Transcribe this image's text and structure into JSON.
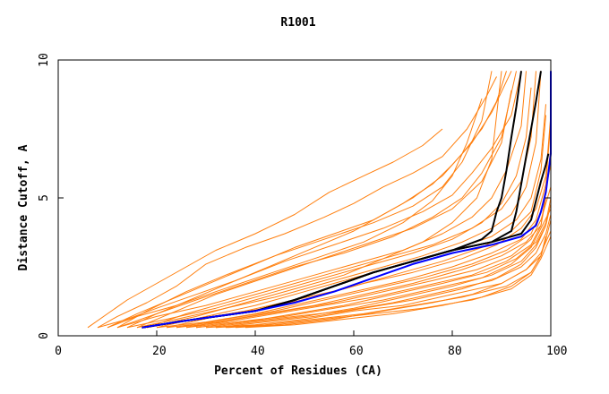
{
  "chart_data": {
    "type": "line",
    "title": "R1001",
    "xlabel": "Percent of Residues (CA)",
    "ylabel": "Distance Cutoff, A",
    "xlim": [
      0,
      100
    ],
    "ylim": [
      0,
      10
    ],
    "xticks": [
      "0",
      "20",
      "40",
      "60",
      "80",
      "100"
    ],
    "yticks": [
      "0",
      "5",
      "10"
    ],
    "grid": false,
    "legend": "none",
    "colors": {
      "orange": "#ff7f0e",
      "black": "#000000",
      "blue": "#0000ff"
    },
    "series": [
      {
        "color": "orange",
        "x": [
          6,
          10,
          14,
          20,
          26,
          32,
          40,
          48,
          55,
          62,
          68,
          74,
          78
        ],
        "y": [
          0.3,
          0.8,
          1.3,
          1.9,
          2.5,
          3.1,
          3.7,
          4.4,
          5.2,
          5.8,
          6.3,
          6.9,
          7.5
        ]
      },
      {
        "color": "orange",
        "x": [
          8,
          12,
          18,
          24,
          30,
          38,
          46,
          54,
          60,
          66,
          72,
          78,
          83,
          87,
          89
        ],
        "y": [
          0.3,
          0.7,
          1.2,
          1.8,
          2.6,
          3.2,
          3.7,
          4.3,
          4.8,
          5.4,
          5.9,
          6.5,
          7.5,
          8.7,
          9.4
        ]
      },
      {
        "color": "orange",
        "x": [
          10,
          16,
          24,
          32,
          40,
          48,
          56,
          64,
          70,
          76,
          80,
          84,
          88,
          92
        ],
        "y": [
          0.3,
          0.8,
          1.4,
          2.0,
          2.6,
          3.2,
          3.7,
          4.2,
          4.8,
          5.5,
          6.2,
          7.0,
          8.1,
          9.6
        ]
      },
      {
        "color": "orange",
        "x": [
          12,
          20,
          28,
          36,
          46,
          56,
          66,
          74,
          80,
          84,
          88,
          92,
          94
        ],
        "y": [
          0.3,
          0.8,
          1.4,
          2.0,
          2.7,
          3.3,
          3.9,
          4.5,
          5.1,
          5.9,
          6.8,
          8.0,
          9.6
        ]
      },
      {
        "color": "orange",
        "x": [
          8,
          14,
          20,
          28,
          36,
          44,
          52,
          60,
          66,
          72,
          78,
          82,
          86,
          89,
          91
        ],
        "y": [
          0.3,
          0.6,
          1.0,
          1.5,
          2.0,
          2.6,
          3.2,
          3.8,
          4.4,
          5.0,
          5.8,
          6.6,
          7.5,
          8.5,
          9.6
        ]
      },
      {
        "color": "orange",
        "x": [
          10,
          16,
          24,
          32,
          42,
          52,
          62,
          70,
          76,
          80,
          83,
          86
        ],
        "y": [
          0.3,
          0.7,
          1.1,
          1.6,
          2.2,
          2.8,
          3.4,
          4.1,
          4.9,
          5.8,
          7.0,
          8.6
        ]
      },
      {
        "color": "orange",
        "x": [
          12,
          20,
          30,
          40,
          50,
          60,
          70,
          78,
          84,
          88,
          91,
          94,
          95
        ],
        "y": [
          0.3,
          0.7,
          1.1,
          1.6,
          2.1,
          2.6,
          3.1,
          3.7,
          4.3,
          5.0,
          6.0,
          7.6,
          9.6
        ]
      },
      {
        "color": "orange",
        "x": [
          14,
          22,
          32,
          42,
          52,
          62,
          72,
          80,
          86,
          90,
          93,
          95,
          96
        ],
        "y": [
          0.3,
          0.6,
          1.0,
          1.5,
          2.0,
          2.5,
          3.0,
          3.5,
          4.1,
          4.8,
          5.8,
          7.2,
          9.0
        ]
      },
      {
        "color": "orange",
        "x": [
          16,
          24,
          34,
          44,
          54,
          64,
          74,
          82,
          88,
          92,
          95,
          97,
          98
        ],
        "y": [
          0.3,
          0.6,
          1.0,
          1.4,
          1.9,
          2.4,
          2.9,
          3.4,
          3.9,
          4.4,
          5.4,
          7.0,
          9.6
        ]
      },
      {
        "color": "orange",
        "x": [
          18,
          28,
          38,
          48,
          58,
          68,
          78,
          86,
          92,
          96,
          98,
          99
        ],
        "y": [
          0.3,
          0.6,
          0.9,
          1.3,
          1.7,
          2.2,
          2.7,
          3.2,
          3.8,
          4.5,
          6.0,
          8.0
        ]
      },
      {
        "color": "orange",
        "x": [
          20,
          30,
          40,
          50,
          60,
          70,
          80,
          88,
          94,
          97,
          99,
          100
        ],
        "y": [
          0.3,
          0.5,
          0.8,
          1.2,
          1.6,
          2.0,
          2.5,
          3.0,
          3.5,
          4.2,
          5.5,
          7.8
        ]
      },
      {
        "color": "orange",
        "x": [
          22,
          32,
          42,
          52,
          62,
          72,
          82,
          90,
          95,
          98,
          99,
          100
        ],
        "y": [
          0.3,
          0.5,
          0.8,
          1.1,
          1.5,
          1.9,
          2.4,
          2.9,
          3.4,
          4.0,
          5.2,
          6.8
        ]
      },
      {
        "color": "orange",
        "x": [
          24,
          34,
          44,
          54,
          64,
          74,
          84,
          91,
          96,
          98,
          99
        ],
        "y": [
          0.3,
          0.5,
          0.8,
          1.1,
          1.4,
          1.8,
          2.2,
          2.7,
          3.3,
          4.0,
          5.0
        ]
      },
      {
        "color": "orange",
        "x": [
          26,
          36,
          46,
          56,
          66,
          76,
          86,
          92,
          96,
          98,
          100
        ],
        "y": [
          0.3,
          0.5,
          0.7,
          1.0,
          1.3,
          1.7,
          2.1,
          2.6,
          3.2,
          3.9,
          4.6
        ]
      },
      {
        "color": "orange",
        "x": [
          28,
          38,
          48,
          58,
          68,
          78,
          88,
          94,
          97,
          99,
          100
        ],
        "y": [
          0.3,
          0.5,
          0.7,
          0.9,
          1.2,
          1.6,
          2.0,
          2.5,
          3.0,
          3.7,
          4.4
        ]
      },
      {
        "color": "orange",
        "x": [
          30,
          40,
          50,
          60,
          70,
          80,
          90,
          95,
          98,
          99,
          100
        ],
        "y": [
          0.3,
          0.4,
          0.6,
          0.9,
          1.1,
          1.5,
          1.9,
          2.4,
          2.9,
          3.5,
          4.2
        ]
      },
      {
        "color": "orange",
        "x": [
          32,
          42,
          52,
          62,
          72,
          82,
          91,
          96,
          98,
          99
        ],
        "y": [
          0.3,
          0.4,
          0.6,
          0.8,
          1.1,
          1.4,
          1.8,
          2.3,
          2.9,
          3.6
        ]
      },
      {
        "color": "orange",
        "x": [
          34,
          44,
          54,
          64,
          74,
          84,
          92,
          96,
          98,
          100
        ],
        "y": [
          0.3,
          0.4,
          0.6,
          0.8,
          1.0,
          1.3,
          1.7,
          2.2,
          2.8,
          3.6
        ]
      },
      {
        "color": "orange",
        "x": [
          14,
          20,
          28,
          38,
          48,
          58,
          68,
          76,
          82,
          86,
          90,
          93
        ],
        "y": [
          0.3,
          0.8,
          1.3,
          1.9,
          2.5,
          3.0,
          3.6,
          4.3,
          5.0,
          5.9,
          7.2,
          9.6
        ]
      },
      {
        "color": "orange",
        "x": [
          16,
          24,
          32,
          42,
          52,
          62,
          72,
          80,
          86,
          90,
          92
        ],
        "y": [
          0.3,
          0.9,
          1.5,
          2.1,
          2.7,
          3.3,
          3.9,
          4.6,
          5.6,
          7.0,
          8.9
        ]
      },
      {
        "color": "orange",
        "x": [
          18,
          26,
          36,
          46,
          56,
          66,
          76,
          84,
          90,
          94,
          96,
          97
        ],
        "y": [
          0.3,
          0.8,
          1.3,
          1.8,
          2.3,
          2.8,
          3.3,
          3.9,
          4.6,
          5.6,
          7.2,
          9.6
        ]
      },
      {
        "color": "orange",
        "x": [
          20,
          30,
          40,
          50,
          60,
          70,
          80,
          88,
          93,
          96,
          98,
          99
        ],
        "y": [
          0.3,
          0.7,
          1.1,
          1.6,
          2.1,
          2.6,
          3.1,
          3.6,
          4.2,
          5.0,
          6.4,
          8.4
        ]
      },
      {
        "color": "orange",
        "x": [
          22,
          32,
          42,
          52,
          62,
          72,
          82,
          89,
          94,
          97,
          99,
          100
        ],
        "y": [
          0.3,
          0.7,
          1.0,
          1.4,
          1.9,
          2.3,
          2.8,
          3.3,
          3.9,
          4.6,
          5.8,
          8.0
        ]
      },
      {
        "color": "orange",
        "x": [
          24,
          34,
          44,
          54,
          64,
          74,
          84,
          91,
          96,
          98,
          100
        ],
        "y": [
          0.3,
          0.6,
          0.9,
          1.3,
          1.7,
          2.1,
          2.6,
          3.1,
          3.7,
          4.5,
          6.2
        ]
      },
      {
        "color": "orange",
        "x": [
          26,
          36,
          46,
          56,
          66,
          76,
          85,
          92,
          96,
          98,
          100
        ],
        "y": [
          0.3,
          0.6,
          0.9,
          1.2,
          1.6,
          2.0,
          2.4,
          2.9,
          3.5,
          4.2,
          5.4
        ]
      },
      {
        "color": "orange",
        "x": [
          28,
          38,
          48,
          58,
          68,
          78,
          87,
          93,
          97,
          99,
          100
        ],
        "y": [
          0.3,
          0.5,
          0.8,
          1.1,
          1.5,
          1.9,
          2.3,
          2.8,
          3.4,
          4.1,
          5.0
        ]
      },
      {
        "color": "orange",
        "x": [
          30,
          40,
          50,
          60,
          70,
          80,
          88,
          94,
          97,
          99,
          100
        ],
        "y": [
          0.3,
          0.5,
          0.7,
          1.0,
          1.4,
          1.8,
          2.2,
          2.7,
          3.3,
          4.0,
          4.8
        ]
      },
      {
        "color": "orange",
        "x": [
          32,
          42,
          52,
          62,
          72,
          82,
          89,
          94,
          97,
          99
        ],
        "y": [
          0.3,
          0.5,
          0.7,
          1.0,
          1.3,
          1.7,
          2.1,
          2.6,
          3.2,
          4.0
        ]
      },
      {
        "color": "orange",
        "x": [
          36,
          46,
          56,
          66,
          76,
          84,
          90,
          95,
          98,
          100
        ],
        "y": [
          0.3,
          0.4,
          0.6,
          0.9,
          1.2,
          1.5,
          1.9,
          2.4,
          3.0,
          3.8
        ]
      },
      {
        "color": "orange",
        "x": [
          38,
          48,
          58,
          68,
          78,
          86,
          92,
          96,
          98,
          99
        ],
        "y": [
          0.3,
          0.4,
          0.6,
          0.8,
          1.1,
          1.4,
          1.8,
          2.3,
          2.9,
          3.6
        ]
      },
      {
        "color": "orange",
        "x": [
          12,
          18,
          26,
          34,
          44,
          54,
          64,
          72,
          78,
          82,
          86,
          88
        ],
        "y": [
          0.3,
          0.9,
          1.6,
          2.2,
          2.9,
          3.5,
          4.1,
          4.7,
          5.4,
          6.3,
          7.8,
          9.6
        ]
      },
      {
        "color": "orange",
        "x": [
          18,
          28,
          38,
          48,
          58,
          66,
          74,
          80,
          85,
          88,
          90
        ],
        "y": [
          0.3,
          0.7,
          1.2,
          1.7,
          2.2,
          2.8,
          3.4,
          4.1,
          5.0,
          6.4,
          9.6
        ]
      },
      {
        "color": "black",
        "x": [
          17,
          24,
          32,
          40,
          48,
          56,
          64,
          72,
          80,
          86,
          88,
          89,
          90,
          91,
          92,
          93,
          94
        ],
        "y": [
          0.3,
          0.5,
          0.7,
          0.9,
          1.3,
          1.8,
          2.3,
          2.7,
          3.1,
          3.5,
          3.8,
          4.5,
          5.0,
          6.0,
          7.2,
          8.3,
          9.6
        ]
      },
      {
        "color": "black",
        "x": [
          17,
          24,
          32,
          40,
          48,
          56,
          64,
          72,
          80,
          88,
          92,
          93,
          94,
          95,
          96,
          97,
          98
        ],
        "y": [
          0.3,
          0.5,
          0.7,
          0.9,
          1.3,
          1.8,
          2.3,
          2.7,
          3.1,
          3.4,
          3.8,
          4.5,
          5.5,
          6.5,
          7.5,
          8.5,
          9.6
        ]
      },
      {
        "color": "black",
        "x": [
          17,
          24,
          32,
          40,
          48,
          56,
          64,
          72,
          80,
          88,
          94,
          96,
          97,
          98,
          99,
          99.5
        ],
        "y": [
          0.3,
          0.5,
          0.7,
          0.9,
          1.3,
          1.8,
          2.3,
          2.7,
          3.1,
          3.4,
          3.7,
          4.2,
          4.9,
          5.6,
          6.2,
          6.6
        ]
      },
      {
        "color": "blue",
        "x": [
          17,
          24,
          32,
          40,
          48,
          56,
          64,
          72,
          80,
          88,
          94,
          97,
          98,
          99,
          99.5,
          100,
          100
        ],
        "y": [
          0.3,
          0.5,
          0.7,
          0.9,
          1.2,
          1.6,
          2.1,
          2.6,
          3.0,
          3.3,
          3.6,
          4.0,
          4.5,
          5.2,
          5.9,
          6.6,
          9.6
        ]
      }
    ]
  }
}
